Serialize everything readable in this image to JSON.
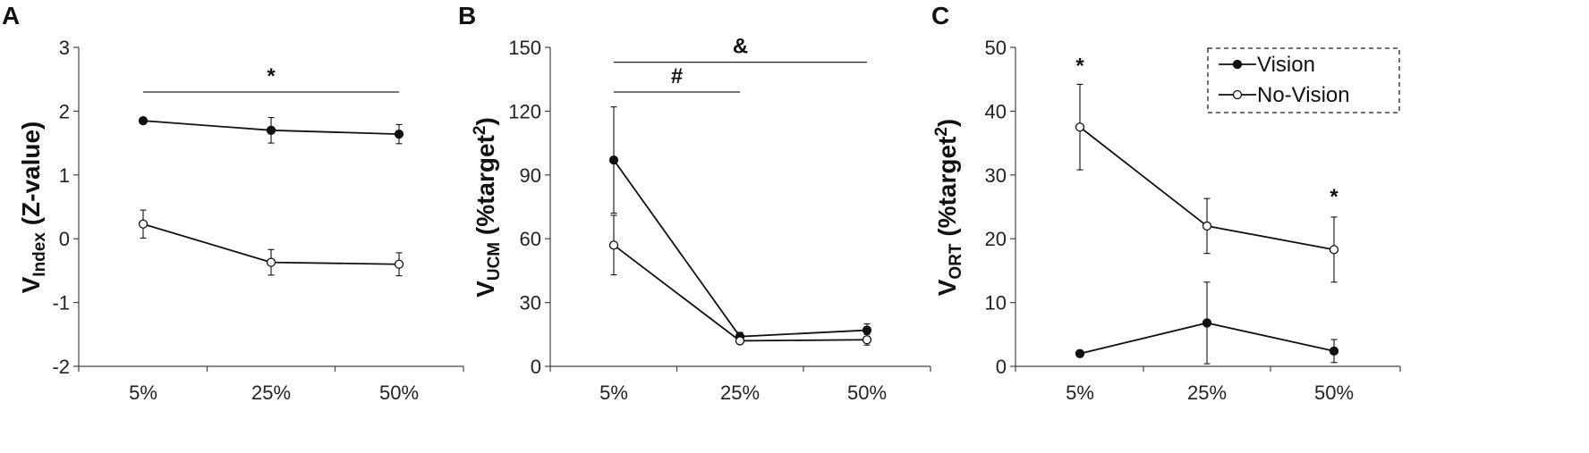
{
  "chart_data": [
    {
      "type": "line",
      "panel": "A",
      "ylabel_main": "V",
      "ylabel_sub": "Index",
      "ylabel_rest": " (Z-value)",
      "categories": [
        "5%",
        "25%",
        "50%"
      ],
      "ylim": [
        -2,
        3
      ],
      "yticks": [
        3,
        2,
        1,
        0,
        -1,
        -2
      ],
      "ytick_labels": [
        "3",
        "2",
        "1",
        "0",
        "-1",
        "-2"
      ],
      "series": [
        {
          "name": "Vision",
          "marker": "filled",
          "values": [
            1.85,
            1.7,
            1.64
          ],
          "errors": [
            0.03,
            0.2,
            0.15
          ]
        },
        {
          "name": "No-Vision",
          "marker": "open",
          "values": [
            0.23,
            -0.37,
            -0.4
          ],
          "errors": [
            0.22,
            0.2,
            0.18
          ]
        }
      ],
      "annotations": [
        {
          "text": "*",
          "x_from": 0,
          "x_to": 2,
          "y": 2.3,
          "bracket": true
        }
      ]
    },
    {
      "type": "line",
      "panel": "B",
      "ylabel_main": "V",
      "ylabel_sub": "UCM",
      "ylabel_rest": " (%target",
      "ylabel_sup": "2",
      "ylabel_end": ")",
      "categories": [
        "5%",
        "25%",
        "50%"
      ],
      "ylim": [
        0,
        150
      ],
      "yticks": [
        150,
        120,
        90,
        60,
        30,
        0
      ],
      "ytick_labels": [
        "150",
        "120",
        "90",
        "60",
        "30",
        "0"
      ],
      "series": [
        {
          "name": "Vision",
          "marker": "filled",
          "values": [
            97,
            14,
            17
          ],
          "errors": [
            25,
            2,
            3
          ]
        },
        {
          "name": "No-Vision",
          "marker": "open",
          "values": [
            57,
            12,
            12.5
          ],
          "errors": [
            14,
            1.5,
            2.5
          ]
        }
      ],
      "annotations": [
        {
          "text": "&",
          "x_from": 0,
          "x_to": 2,
          "y": 143,
          "bracket": true
        },
        {
          "text": "#",
          "x_from": 0,
          "x_to": 1,
          "y": 129,
          "bracket": true
        }
      ]
    },
    {
      "type": "line",
      "panel": "C",
      "ylabel_main": "V",
      "ylabel_sub": "ORT",
      "ylabel_rest": " (%target",
      "ylabel_sup": "2",
      "ylabel_end": ")",
      "categories": [
        "5%",
        "25%",
        "50%"
      ],
      "ylim": [
        0,
        50
      ],
      "yticks": [
        50,
        40,
        30,
        20,
        10,
        0
      ],
      "ytick_labels": [
        "50",
        "40",
        "30",
        "20",
        "10",
        "0"
      ],
      "series": [
        {
          "name": "Vision",
          "marker": "filled",
          "values": [
            2,
            6.8,
            2.4
          ],
          "errors": [
            0.5,
            6.4,
            1.8
          ]
        },
        {
          "name": "No-Vision",
          "marker": "open",
          "values": [
            37.5,
            22,
            18.3
          ],
          "errors": [
            6.7,
            4.3,
            5.1
          ]
        }
      ],
      "annotations": [
        {
          "text": "*",
          "x": 0,
          "y": 46,
          "bracket": false
        },
        {
          "text": "*",
          "x": 2,
          "y": 25.5,
          "bracket": false
        }
      ],
      "legend": {
        "position": "top-right",
        "entries": [
          "Vision",
          "No-Vision"
        ],
        "border": "dashed"
      }
    }
  ]
}
